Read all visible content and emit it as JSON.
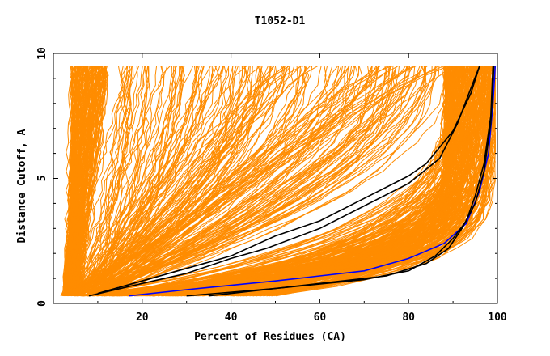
{
  "chart_data": {
    "type": "line",
    "title": "T1052-D1",
    "xlabel": "Percent of Residues (CA)",
    "ylabel": "Distance Cutoff, A",
    "xlim": [
      0,
      100
    ],
    "ylim": [
      0,
      10
    ],
    "x_ticks": [
      {
        "value": 20,
        "label": "20"
      },
      {
        "value": 40,
        "label": "40"
      },
      {
        "value": 60,
        "label": "60"
      },
      {
        "value": 80,
        "label": "80"
      },
      {
        "value": 100,
        "label": "100"
      }
    ],
    "y_ticks": [
      {
        "value": 0,
        "label": "0"
      },
      {
        "value": 5,
        "label": "5"
      },
      {
        "value": 10,
        "label": "10"
      }
    ],
    "grid": false,
    "colors": {
      "background_models": "#ff8c00",
      "highlight_black": "#000000",
      "highlight_blue": "#0000ff"
    },
    "series_groups": {
      "background": {
        "color": "#ff8c00",
        "description_count": 600
      },
      "highlight": [
        {
          "color": "#000000",
          "x": [
            10,
            20,
            30,
            40,
            50,
            60,
            70,
            80,
            84,
            90,
            94,
            96
          ],
          "y": [
            0.4,
            0.9,
            1.4,
            1.9,
            2.7,
            3.3,
            4.2,
            5.1,
            5.6,
            6.9,
            8.4,
            9.5
          ]
        },
        {
          "color": "#000000",
          "x": [
            8,
            20,
            30,
            40,
            48,
            60,
            70,
            80,
            87,
            91,
            94,
            96
          ],
          "y": [
            0.3,
            0.8,
            1.2,
            1.8,
            2.2,
            3.0,
            3.9,
            4.8,
            5.8,
            7.2,
            8.6,
            9.5
          ]
        },
        {
          "color": "#0000ff",
          "x": [
            17,
            30,
            50,
            70,
            80,
            88,
            93,
            96,
            98,
            99,
            99.5
          ],
          "y": [
            0.3,
            0.55,
            0.9,
            1.3,
            1.8,
            2.4,
            3.2,
            4.5,
            6.0,
            8.0,
            9.5
          ]
        },
        {
          "color": "#000000",
          "x": [
            30,
            50,
            70,
            80,
            86,
            90,
            93,
            95,
            97,
            98.5,
            99
          ],
          "y": [
            0.3,
            0.6,
            0.95,
            1.3,
            1.9,
            2.6,
            3.3,
            4.3,
            5.6,
            7.5,
            9.5
          ]
        },
        {
          "color": "#000000",
          "x": [
            35,
            55,
            75,
            84,
            89,
            92,
            95,
            97,
            98.5,
            99.2
          ],
          "y": [
            0.3,
            0.7,
            1.1,
            1.6,
            2.2,
            3.0,
            4.0,
            5.3,
            7.2,
            9.5
          ]
        }
      ]
    }
  }
}
